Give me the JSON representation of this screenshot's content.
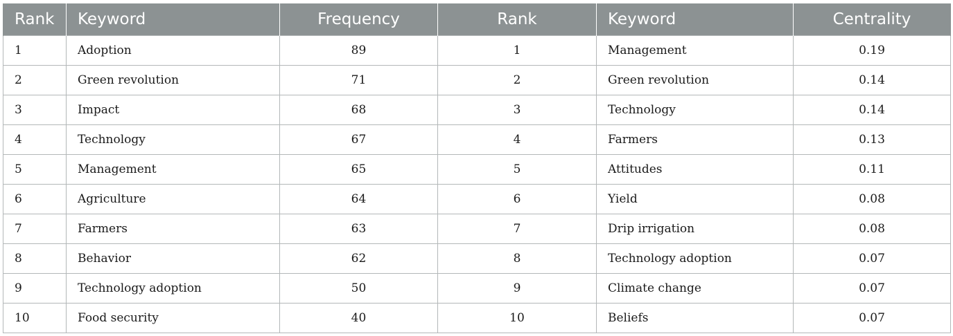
{
  "table": {
    "headers": [
      "Rank",
      "Keyword",
      "Frequency",
      "Rank",
      "Keyword",
      "Centrality"
    ],
    "rows": [
      [
        "1",
        "Adoption",
        "89",
        "1",
        "Management",
        "0.19"
      ],
      [
        "2",
        "Green revolution",
        "71",
        "2",
        "Green revolution",
        "0.14"
      ],
      [
        "3",
        "Impact",
        "68",
        "3",
        "Technology",
        "0.14"
      ],
      [
        "4",
        "Technology",
        "67",
        "4",
        "Farmers",
        "0.13"
      ],
      [
        "5",
        "Management",
        "65",
        "5",
        "Attitudes",
        "0.11"
      ],
      [
        "6",
        "Agriculture",
        "64",
        "6",
        "Yield",
        "0.08"
      ],
      [
        "7",
        "Farmers",
        "63",
        "7",
        "Drip irrigation",
        "0.08"
      ],
      [
        "8",
        "Behavior",
        "62",
        "8",
        "Technology adoption",
        "0.07"
      ],
      [
        "9",
        "Technology adoption",
        "50",
        "9",
        "Climate change",
        "0.07"
      ],
      [
        "10",
        "Food security",
        "40",
        "10",
        "Beliefs",
        "0.07"
      ]
    ]
  },
  "colors": {
    "header_background": "#8c9293",
    "header_text": "#ffffff",
    "grid_line": "#b3b7b8",
    "cell_text": "#1a1a1a"
  }
}
